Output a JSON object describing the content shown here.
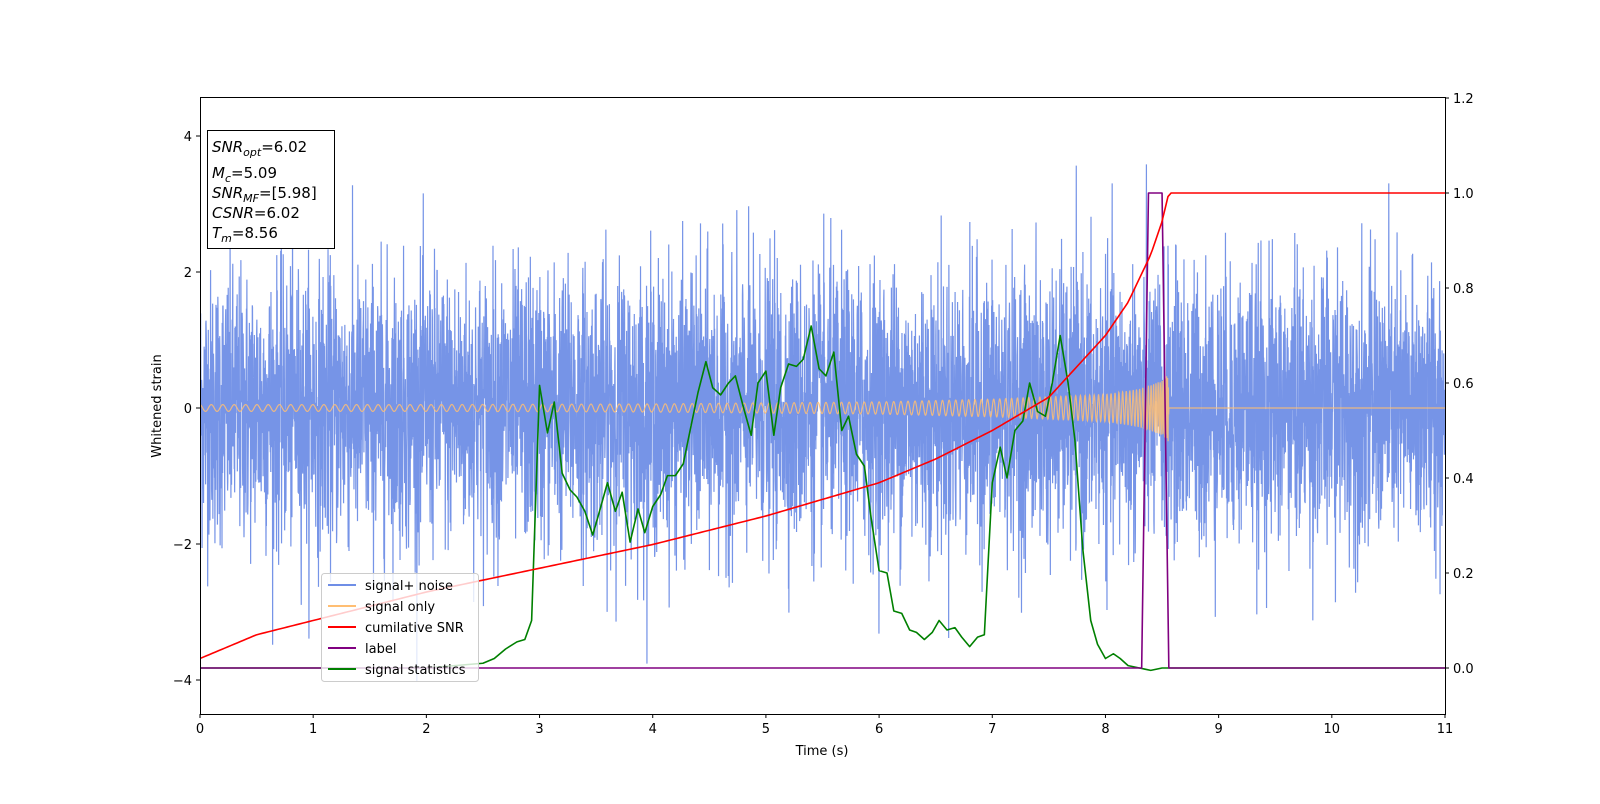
{
  "chart_data": {
    "type": "line",
    "xlabel": "Time (s)",
    "ylabel": "Whitened strain",
    "xlim": [
      0,
      11
    ],
    "ylim_left": [
      -4.5,
      4.6
    ],
    "ylim_right": [
      -0.1,
      1.2
    ],
    "x_ticks": [
      "0",
      "1",
      "2",
      "3",
      "4",
      "5",
      "6",
      "7",
      "8",
      "9",
      "10",
      "11"
    ],
    "y_left_ticks": [
      {
        "value": 4,
        "label": "4"
      },
      {
        "value": 2,
        "label": "2"
      },
      {
        "value": 0,
        "label": "0"
      },
      {
        "value": -2,
        "label": "−2"
      },
      {
        "value": -4,
        "label": "−4"
      }
    ],
    "y_right_ticks": [
      {
        "value": 1.2,
        "label": "1.2"
      },
      {
        "value": 1.0,
        "label": "1.0"
      },
      {
        "value": 0.8,
        "label": "0.8"
      },
      {
        "value": 0.6,
        "label": "0.6"
      },
      {
        "value": 0.4,
        "label": "0.4"
      },
      {
        "value": 0.2,
        "label": "0.2"
      },
      {
        "value": 0.0,
        "label": "0.0"
      }
    ],
    "stats_box": [
      {
        "name": "SNR",
        "sub": "opt",
        "value": "=6.02"
      },
      {
        "name": "M",
        "sub": "c",
        "value": "=5.09"
      },
      {
        "name": "SNR",
        "sub": "MF",
        "value": "=[5.98]"
      },
      {
        "name": "CSNR",
        "sub": "",
        "value": "=6.02"
      },
      {
        "name": "T",
        "sub": "m",
        "value": "=8.56"
      }
    ],
    "legend": {
      "placement": "lower-left",
      "entries": [
        {
          "label": "signal+ noise",
          "color": "#6f8ee6"
        },
        {
          "label": "signal only",
          "color": "#ffbe73"
        },
        {
          "label": "cumilative SNR",
          "color": "#ff0000"
        },
        {
          "label": "label",
          "color": "#800080"
        },
        {
          "label": "signal statistics",
          "color": "#008000"
        }
      ]
    },
    "series": [
      {
        "name": "signal+ noise",
        "axis": "left",
        "color": "#6f8ee6",
        "description_stats": {
          "x_range": [
            0,
            11
          ],
          "typical_envelope": [
            -2.5,
            2.5
          ],
          "max": 4.2,
          "min": -4.1
        }
      },
      {
        "name": "signal only",
        "axis": "left",
        "color": "#ffbe73",
        "amplitude_envelope": {
          "x": [
            0,
            2,
            4,
            6,
            7,
            8,
            8.3,
            8.5,
            8.56,
            11
          ],
          "amp": [
            0.05,
            0.05,
            0.06,
            0.09,
            0.13,
            0.2,
            0.28,
            0.4,
            0.5,
            0.0
          ]
        }
      },
      {
        "name": "cumilative SNR",
        "axis": "right",
        "color": "#ff0000",
        "x": [
          0,
          0.5,
          1,
          2,
          3,
          4,
          5,
          6,
          6.5,
          7,
          7.5,
          8,
          8.2,
          8.4,
          8.5,
          8.56,
          11
        ],
        "y": [
          0.02,
          0.07,
          0.1,
          0.16,
          0.21,
          0.26,
          0.32,
          0.39,
          0.44,
          0.5,
          0.57,
          0.7,
          0.77,
          0.87,
          0.94,
          1.0,
          1.0
        ]
      },
      {
        "name": "label",
        "axis": "right",
        "color": "#800080",
        "x": [
          0,
          8.32,
          8.38,
          8.5,
          8.56,
          11
        ],
        "y": [
          0,
          0,
          1,
          1,
          0,
          0
        ]
      },
      {
        "name": "signal statistics",
        "axis": "right",
        "color": "#008000",
        "x": [
          0,
          1,
          2,
          2.5,
          2.6,
          2.7,
          2.8,
          2.87,
          2.93,
          3.0,
          3.07,
          3.13,
          3.2,
          3.27,
          3.33,
          3.4,
          3.47,
          3.53,
          3.6,
          3.67,
          3.73,
          3.8,
          3.87,
          3.93,
          4.0,
          4.07,
          4.13,
          4.2,
          4.27,
          4.33,
          4.4,
          4.47,
          4.53,
          4.6,
          4.67,
          4.73,
          4.8,
          4.87,
          4.93,
          5.0,
          5.07,
          5.13,
          5.2,
          5.27,
          5.33,
          5.4,
          5.47,
          5.53,
          5.6,
          5.67,
          5.73,
          5.8,
          5.87,
          5.93,
          6.0,
          6.07,
          6.13,
          6.2,
          6.27,
          6.33,
          6.4,
          6.47,
          6.53,
          6.6,
          6.67,
          6.73,
          6.8,
          6.87,
          6.93,
          7.0,
          7.07,
          7.13,
          7.2,
          7.27,
          7.33,
          7.4,
          7.47,
          7.53,
          7.6,
          7.67,
          7.73,
          7.8,
          7.87,
          7.93,
          8.0,
          8.07,
          8.13,
          8.2,
          8.3,
          8.4,
          8.5,
          9,
          10,
          11
        ],
        "y": [
          0.0,
          0.0,
          0.0,
          0.01,
          0.02,
          0.04,
          0.055,
          0.06,
          0.1,
          0.595,
          0.495,
          0.56,
          0.41,
          0.375,
          0.36,
          0.33,
          0.28,
          0.33,
          0.39,
          0.33,
          0.37,
          0.265,
          0.335,
          0.285,
          0.34,
          0.365,
          0.405,
          0.405,
          0.43,
          0.5,
          0.58,
          0.645,
          0.59,
          0.575,
          0.6,
          0.615,
          0.55,
          0.49,
          0.6,
          0.625,
          0.49,
          0.59,
          0.64,
          0.635,
          0.65,
          0.72,
          0.63,
          0.615,
          0.665,
          0.5,
          0.53,
          0.45,
          0.425,
          0.315,
          0.205,
          0.2,
          0.12,
          0.115,
          0.08,
          0.075,
          0.06,
          0.075,
          0.1,
          0.08,
          0.085,
          0.065,
          0.045,
          0.065,
          0.07,
          0.39,
          0.465,
          0.4,
          0.5,
          0.52,
          0.6,
          0.54,
          0.53,
          0.6,
          0.7,
          0.6,
          0.48,
          0.25,
          0.1,
          0.05,
          0.02,
          0.03,
          0.02,
          0.005,
          0.0,
          -0.005,
          0.0,
          0.0,
          0.0,
          0.0
        ]
      }
    ]
  }
}
